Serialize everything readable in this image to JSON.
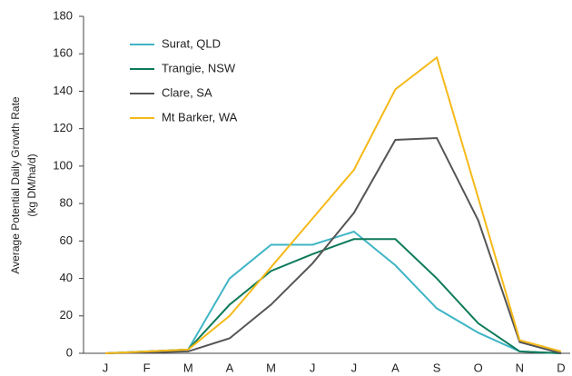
{
  "chart_data": {
    "type": "line",
    "ylabel": [
      "Average Potential Daily Growth Rate",
      "(kg DM/ha/d)"
    ],
    "categories": [
      "J",
      "F",
      "M",
      "A",
      "M",
      "J",
      "J",
      "A",
      "S",
      "O",
      "N",
      "D"
    ],
    "series": [
      {
        "name": "Surat, QLD",
        "color": "#3fb5c5",
        "values": [
          0,
          1,
          2,
          40,
          58,
          58,
          65,
          47,
          24,
          11,
          1,
          0
        ]
      },
      {
        "name": "Trangie, NSW",
        "color": "#0d7a5a",
        "values": [
          0,
          1,
          2,
          26,
          44,
          53,
          61,
          61,
          40,
          16,
          1,
          0
        ]
      },
      {
        "name": "Clare, SA",
        "color": "#555555",
        "values": [
          0,
          0.5,
          1,
          8,
          26,
          48,
          75,
          114,
          115,
          71,
          6,
          0
        ]
      },
      {
        "name": "Mt Barker, WA",
        "color": "#f5b919",
        "values": [
          0,
          1,
          2,
          20,
          46,
          72,
          98,
          141,
          158,
          83,
          7,
          1
        ]
      }
    ],
    "ylim": [
      0,
      180
    ],
    "yticks": [
      0,
      20,
      40,
      60,
      80,
      100,
      120,
      140,
      160,
      180
    ],
    "grid": false,
    "legend": "upper left"
  }
}
